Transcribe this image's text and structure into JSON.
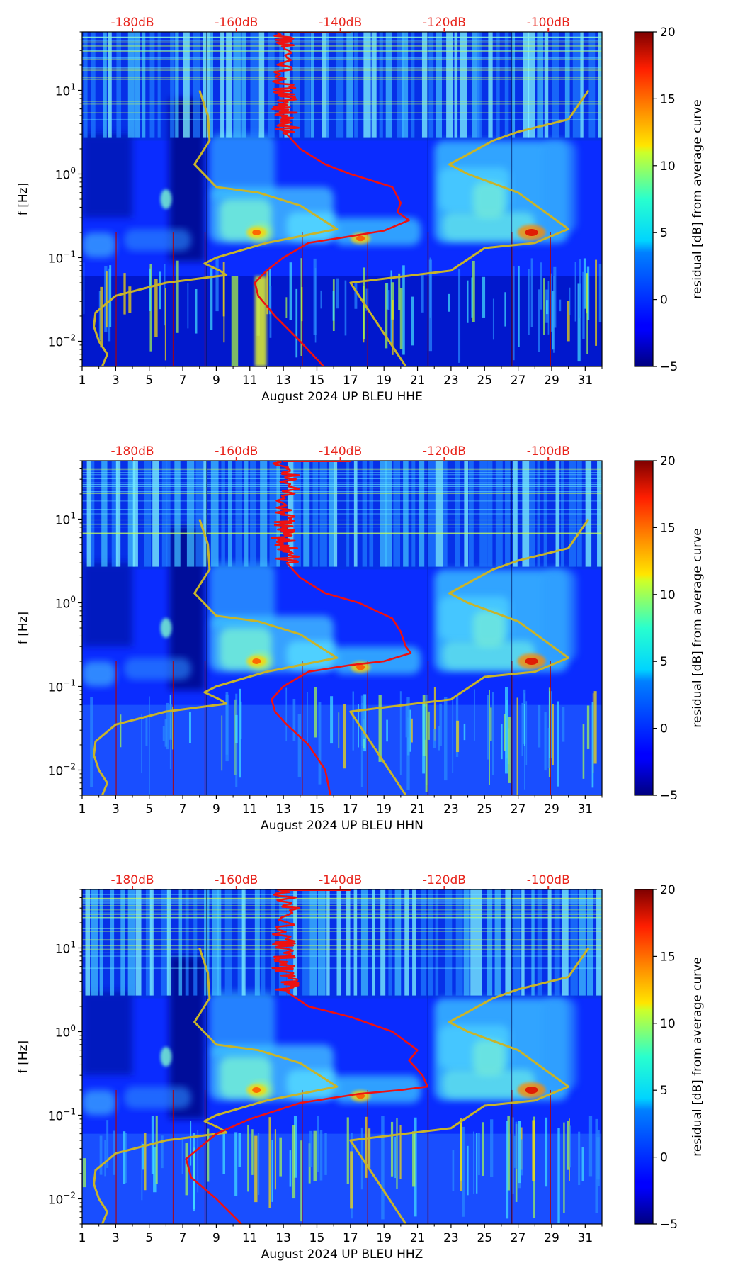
{
  "chart_data": [
    {
      "type": "heatmap",
      "xlabel": "August 2024 UP BLEU  HHE",
      "ylabel": "f [Hz]",
      "x_ticks": [
        "1",
        "3",
        "5",
        "7",
        "9",
        "11",
        "13",
        "15",
        "17",
        "19",
        "21",
        "23",
        "25",
        "27",
        "29",
        "31"
      ],
      "y_ticks": [
        {
          "value": 10,
          "label": "10",
          "exp": "1"
        },
        {
          "value": 1,
          "label": "10",
          "exp": "0"
        },
        {
          "value": 0.1,
          "label": "10",
          "exp": "−1"
        },
        {
          "value": 0.01,
          "label": "10",
          "exp": "−2"
        }
      ],
      "xlim": [
        1,
        32
      ],
      "ylim": [
        0.005,
        50
      ],
      "db_ticks": [
        {
          "label": "-180dB",
          "day": 4
        },
        {
          "label": "-160dB",
          "day": 10.2
        },
        {
          "label": "-140dB",
          "day": 16.4
        },
        {
          "label": "-120dB",
          "day": 22.6
        },
        {
          "label": "-100dB",
          "day": 28.8
        }
      ],
      "colorbar": {
        "label": "residual [dB] from average curve",
        "ticks": [
          "20",
          "15",
          "10",
          "5",
          "0",
          "−5"
        ],
        "min": -5,
        "max": 20
      },
      "red_curve": [
        [
          13,
          50
        ],
        [
          13.3,
          30
        ],
        [
          13,
          12
        ],
        [
          13.2,
          8
        ],
        [
          13,
          6
        ],
        [
          13.3,
          4.5
        ],
        [
          13.2,
          3
        ],
        [
          14,
          2
        ],
        [
          15.5,
          1.3
        ],
        [
          17,
          1
        ],
        [
          19.5,
          0.7
        ],
        [
          20,
          0.45
        ],
        [
          19.8,
          0.35
        ],
        [
          20.5,
          0.28
        ],
        [
          19,
          0.21
        ],
        [
          17,
          0.18
        ],
        [
          14.5,
          0.15
        ],
        [
          13,
          0.1
        ],
        [
          12,
          0.07
        ],
        [
          11.3,
          0.05
        ],
        [
          11.5,
          0.035
        ],
        [
          12.5,
          0.02
        ],
        [
          14,
          0.01
        ],
        [
          15.4,
          0.005
        ]
      ],
      "yellow_curve_a": [
        [
          8,
          10
        ],
        [
          8.5,
          5
        ],
        [
          8.6,
          2.5
        ],
        [
          7.7,
          1.3
        ],
        [
          9,
          0.7
        ],
        [
          11.5,
          0.6
        ],
        [
          14,
          0.42
        ],
        [
          16.2,
          0.22
        ],
        [
          12,
          0.15
        ],
        [
          9,
          0.1
        ],
        [
          8.3,
          0.085
        ],
        [
          9.2,
          0.07
        ],
        [
          9.6,
          0.062
        ],
        [
          6,
          0.05
        ],
        [
          3,
          0.035
        ],
        [
          1.8,
          0.022
        ],
        [
          1.7,
          0.015
        ],
        [
          2,
          0.01
        ],
        [
          2.5,
          0.007
        ],
        [
          2.2,
          0.005
        ]
      ],
      "yellow_curve_b": [
        [
          31.2,
          10
        ],
        [
          30,
          4.5
        ],
        [
          27,
          3.2
        ],
        [
          25.5,
          2.5
        ],
        [
          22.9,
          1.3
        ],
        [
          24,
          1
        ],
        [
          27,
          0.6
        ],
        [
          30,
          0.22
        ],
        [
          28,
          0.15
        ],
        [
          25,
          0.13
        ],
        [
          23,
          0.07
        ],
        [
          17,
          0.05
        ],
        [
          20.3,
          0.005
        ]
      ],
      "hotspots": [
        {
          "day": 27.8,
          "freq": 0.2,
          "level": "high"
        },
        {
          "day": 17.6,
          "freq": 0.17,
          "level": "mid"
        },
        {
          "day": 11.4,
          "freq": 0.2,
          "level": "mid"
        }
      ]
    },
    {
      "type": "heatmap",
      "xlabel": "August 2024 UP BLEU  HHN",
      "ylabel": "f [Hz]",
      "x_ticks": [
        "1",
        "3",
        "5",
        "7",
        "9",
        "11",
        "13",
        "15",
        "17",
        "19",
        "21",
        "23",
        "25",
        "27",
        "29",
        "31"
      ],
      "y_ticks": [
        {
          "value": 10,
          "label": "10",
          "exp": "1"
        },
        {
          "value": 1,
          "label": "10",
          "exp": "0"
        },
        {
          "value": 0.1,
          "label": "10",
          "exp": "−1"
        },
        {
          "value": 0.01,
          "label": "10",
          "exp": "−2"
        }
      ],
      "xlim": [
        1,
        32
      ],
      "ylim": [
        0.005,
        50
      ],
      "db_ticks": [
        {
          "label": "-180dB",
          "day": 4
        },
        {
          "label": "-160dB",
          "day": 10.2
        },
        {
          "label": "-140dB",
          "day": 16.4
        },
        {
          "label": "-120dB",
          "day": 22.6
        },
        {
          "label": "-100dB",
          "day": 28.8
        }
      ],
      "colorbar": {
        "label": "residual [dB] from average curve",
        "ticks": [
          "20",
          "15",
          "10",
          "5",
          "0",
          "−5"
        ],
        "min": -5,
        "max": 20
      },
      "red_curve": [
        [
          13,
          50
        ],
        [
          13.4,
          30
        ],
        [
          13,
          12
        ],
        [
          13.2,
          8
        ],
        [
          13,
          6
        ],
        [
          13.3,
          4.5
        ],
        [
          13.2,
          3
        ],
        [
          14,
          2
        ],
        [
          15.5,
          1.3
        ],
        [
          17.5,
          1
        ],
        [
          19.5,
          0.65
        ],
        [
          20,
          0.45
        ],
        [
          20.3,
          0.3
        ],
        [
          20.6,
          0.25
        ],
        [
          19,
          0.2
        ],
        [
          17,
          0.18
        ],
        [
          14.5,
          0.15
        ],
        [
          13,
          0.1
        ],
        [
          12.3,
          0.07
        ],
        [
          12.5,
          0.05
        ],
        [
          13.2,
          0.035
        ],
        [
          14.5,
          0.02
        ],
        [
          15.5,
          0.01
        ],
        [
          15.8,
          0.005
        ]
      ],
      "yellow_curve_a": [
        [
          8,
          10
        ],
        [
          8.5,
          5
        ],
        [
          8.6,
          2.5
        ],
        [
          7.7,
          1.3
        ],
        [
          9,
          0.7
        ],
        [
          11.5,
          0.6
        ],
        [
          14,
          0.42
        ],
        [
          16.2,
          0.22
        ],
        [
          12,
          0.15
        ],
        [
          9,
          0.1
        ],
        [
          8.3,
          0.085
        ],
        [
          9.2,
          0.07
        ],
        [
          9.6,
          0.062
        ],
        [
          6,
          0.05
        ],
        [
          3,
          0.035
        ],
        [
          1.8,
          0.022
        ],
        [
          1.7,
          0.015
        ],
        [
          2,
          0.01
        ],
        [
          2.5,
          0.007
        ],
        [
          2.2,
          0.005
        ]
      ],
      "yellow_curve_b": [
        [
          31.2,
          10
        ],
        [
          30,
          4.5
        ],
        [
          27,
          3.2
        ],
        [
          25.5,
          2.5
        ],
        [
          22.9,
          1.3
        ],
        [
          24,
          1
        ],
        [
          27,
          0.6
        ],
        [
          30,
          0.22
        ],
        [
          28,
          0.15
        ],
        [
          25,
          0.13
        ],
        [
          23,
          0.07
        ],
        [
          17,
          0.05
        ],
        [
          20.3,
          0.005
        ]
      ],
      "hotspots": [
        {
          "day": 27.8,
          "freq": 0.2,
          "level": "high"
        },
        {
          "day": 17.6,
          "freq": 0.17,
          "level": "mid"
        },
        {
          "day": 11.4,
          "freq": 0.2,
          "level": "mid"
        }
      ]
    },
    {
      "type": "heatmap",
      "xlabel": "August 2024 UP BLEU  HHZ",
      "ylabel": "f [Hz]",
      "x_ticks": [
        "1",
        "3",
        "5",
        "7",
        "9",
        "11",
        "13",
        "15",
        "17",
        "19",
        "21",
        "23",
        "25",
        "27",
        "29",
        "31"
      ],
      "y_ticks": [
        {
          "value": 10,
          "label": "10",
          "exp": "1"
        },
        {
          "value": 1,
          "label": "10",
          "exp": "0"
        },
        {
          "value": 0.1,
          "label": "10",
          "exp": "−1"
        },
        {
          "value": 0.01,
          "label": "10",
          "exp": "−2"
        }
      ],
      "xlim": [
        1,
        32
      ],
      "ylim": [
        0.005,
        50
      ],
      "db_ticks": [
        {
          "label": "-180dB",
          "day": 4
        },
        {
          "label": "-160dB",
          "day": 10.2
        },
        {
          "label": "-140dB",
          "day": 16.4
        },
        {
          "label": "-120dB",
          "day": 22.6
        },
        {
          "label": "-100dB",
          "day": 28.8
        }
      ],
      "colorbar": {
        "label": "residual [dB] from average curve",
        "ticks": [
          "20",
          "15",
          "10",
          "5",
          "0",
          "−5"
        ],
        "min": -5,
        "max": 20
      },
      "red_curve": [
        [
          13,
          50
        ],
        [
          13.3,
          30
        ],
        [
          13,
          12
        ],
        [
          13.1,
          8
        ],
        [
          13,
          6
        ],
        [
          13.2,
          4.5
        ],
        [
          13.2,
          3
        ],
        [
          14.5,
          2
        ],
        [
          17,
          1.5
        ],
        [
          19.5,
          1
        ],
        [
          21,
          0.6
        ],
        [
          20.5,
          0.45
        ],
        [
          21.3,
          0.3
        ],
        [
          21.6,
          0.22
        ],
        [
          20,
          0.2
        ],
        [
          17.5,
          0.18
        ],
        [
          14,
          0.14
        ],
        [
          11,
          0.09
        ],
        [
          9,
          0.06
        ],
        [
          7.2,
          0.03
        ],
        [
          7.5,
          0.018
        ],
        [
          9,
          0.01
        ],
        [
          10.5,
          0.005
        ]
      ],
      "yellow_curve_a": [
        [
          8,
          10
        ],
        [
          8.5,
          5
        ],
        [
          8.6,
          2.5
        ],
        [
          7.7,
          1.3
        ],
        [
          9,
          0.7
        ],
        [
          11.5,
          0.6
        ],
        [
          14,
          0.42
        ],
        [
          16.2,
          0.22
        ],
        [
          12,
          0.15
        ],
        [
          9,
          0.1
        ],
        [
          8.3,
          0.085
        ],
        [
          9.2,
          0.07
        ],
        [
          9.6,
          0.062
        ],
        [
          6,
          0.05
        ],
        [
          3,
          0.035
        ],
        [
          1.8,
          0.022
        ],
        [
          1.7,
          0.015
        ],
        [
          2,
          0.01
        ],
        [
          2.5,
          0.007
        ],
        [
          2.2,
          0.005
        ]
      ],
      "yellow_curve_b": [
        [
          31.2,
          10
        ],
        [
          30,
          4.5
        ],
        [
          27,
          3.2
        ],
        [
          25.5,
          2.5
        ],
        [
          22.9,
          1.3
        ],
        [
          24,
          1
        ],
        [
          27,
          0.6
        ],
        [
          30,
          0.22
        ],
        [
          28,
          0.15
        ],
        [
          25,
          0.13
        ],
        [
          23,
          0.07
        ],
        [
          17,
          0.05
        ],
        [
          20.3,
          0.005
        ]
      ],
      "hotspots": [
        {
          "day": 27.8,
          "freq": 0.2,
          "level": "high"
        },
        {
          "day": 17.6,
          "freq": 0.17,
          "level": "mid"
        },
        {
          "day": 11.4,
          "freq": 0.2,
          "level": "mid"
        }
      ]
    }
  ],
  "colors": {
    "red_curve": "#ee1111",
    "yellow_curve": "#c8b42a",
    "db_label": "#e8241c",
    "background_low": "#00008f",
    "background_mid": "#1a44ff"
  }
}
